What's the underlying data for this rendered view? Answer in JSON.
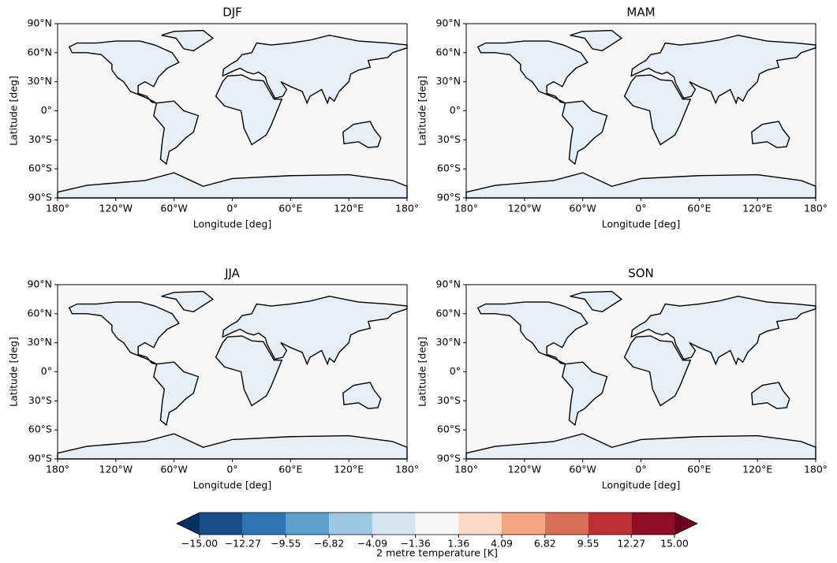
{
  "panels": [
    {
      "title": "DJF"
    },
    {
      "title": "MAM"
    },
    {
      "title": "JJA"
    },
    {
      "title": "SON"
    }
  ],
  "xlabel": "Longitude [deg]",
  "ylabel": "Latitude [deg]",
  "xlim": [
    -180,
    180
  ],
  "ylim": [
    -90,
    90
  ],
  "xticks": [
    {
      "value": -180,
      "label": "180°"
    },
    {
      "value": -120,
      "label": "120°W"
    },
    {
      "value": -60,
      "label": "60°W"
    },
    {
      "value": 0,
      "label": "0°"
    },
    {
      "value": 60,
      "label": "60°E"
    },
    {
      "value": 120,
      "label": "120°E"
    },
    {
      "value": 180,
      "label": "180°"
    }
  ],
  "yticks": [
    {
      "value": -90,
      "label": "90°S"
    },
    {
      "value": -60,
      "label": "60°S"
    },
    {
      "value": -30,
      "label": "30°S"
    },
    {
      "value": 0,
      "label": "0°"
    },
    {
      "value": 30,
      "label": "30°N"
    },
    {
      "value": 60,
      "label": "60°N"
    },
    {
      "value": 90,
      "label": "90°N"
    }
  ],
  "colorbar": {
    "label": "2 metre temperature [K]",
    "lim": [
      -15,
      15
    ],
    "ticks": [
      {
        "value": -15,
        "label": "−15.00"
      },
      {
        "value": -12.27,
        "label": "−12.27"
      },
      {
        "value": -9.55,
        "label": "−9.55"
      },
      {
        "value": -6.82,
        "label": "−6.82"
      },
      {
        "value": -4.09,
        "label": "−4.09"
      },
      {
        "value": -1.36,
        "label": "−1.36"
      },
      1.36,
      4.09,
      6.82,
      9.55,
      12.27,
      {
        "value": 15,
        "label": "15.00"
      }
    ],
    "colors": [
      "#164e8a",
      "#2e74b3",
      "#5b9fcb",
      "#9cc9e1",
      "#d4e6f1",
      "#f7f7f7",
      "#fbdbc8",
      "#f4a683",
      "#d86f59",
      "#bb2f35",
      "#8e0f27"
    ],
    "under_color": "#053061",
    "over_color": "#67001f"
  }
}
